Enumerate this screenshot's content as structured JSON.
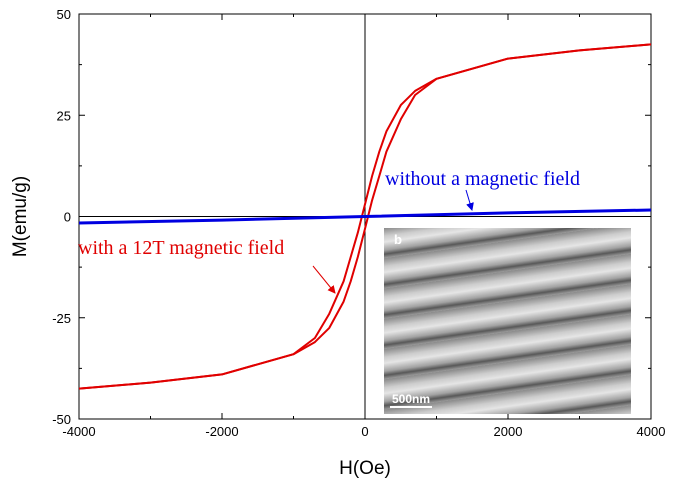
{
  "chart_data": {
    "type": "line",
    "title": "",
    "xlabel": "H(Oe)",
    "ylabel": "M(emu/g)",
    "xlim": [
      -4000,
      4000
    ],
    "ylim": [
      -50,
      50
    ],
    "xticks": [
      -4000,
      -2000,
      0,
      2000,
      4000
    ],
    "yticks": [
      -50,
      -25,
      0,
      25,
      50
    ],
    "xtick_labels": [
      "-4000",
      "-2000",
      "0",
      "2000",
      "4000"
    ],
    "ytick_labels": [
      "-50",
      "-25",
      "0",
      "25",
      "50"
    ],
    "grid": false,
    "series": [
      {
        "name": "with a 12T magnetic field (ascending)",
        "color": "#e00000",
        "x": [
          -4000,
          -3000,
          -2000,
          -1000,
          -700,
          -500,
          -300,
          -200,
          -100,
          0,
          100,
          200,
          300,
          500,
          700,
          1000,
          2000,
          3000,
          4000
        ],
        "y": [
          -42.5,
          -41,
          -39,
          -34,
          -31,
          -27.5,
          -21,
          -16,
          -10,
          -3,
          4,
          10,
          16,
          24,
          30,
          34,
          39,
          41,
          42.5
        ]
      },
      {
        "name": "with a 12T magnetic field (descending)",
        "color": "#e00000",
        "x": [
          4000,
          3000,
          2000,
          1000,
          700,
          500,
          300,
          200,
          100,
          0,
          -100,
          -200,
          -300,
          -500,
          -700,
          -1000,
          -2000,
          -3000,
          -4000
        ],
        "y": [
          42.5,
          41,
          39,
          34,
          31,
          27.5,
          21,
          16,
          10,
          3,
          -4,
          -10,
          -16,
          -24,
          -30,
          -34,
          -39,
          -41,
          -42.5
        ]
      },
      {
        "name": "without a magnetic field",
        "color": "#0000e0",
        "x": [
          -4000,
          -2000,
          0,
          2000,
          4000
        ],
        "y": [
          -1.6,
          -0.9,
          0,
          0.9,
          1.6
        ]
      }
    ],
    "annotations": [
      {
        "text": "with a 12T magnetic field",
        "color": "#e00000"
      },
      {
        "text": "without a magnetic field",
        "color": "#0000e0"
      }
    ],
    "inset": {
      "panel_label": "b",
      "scale_bar": "500nm"
    }
  }
}
